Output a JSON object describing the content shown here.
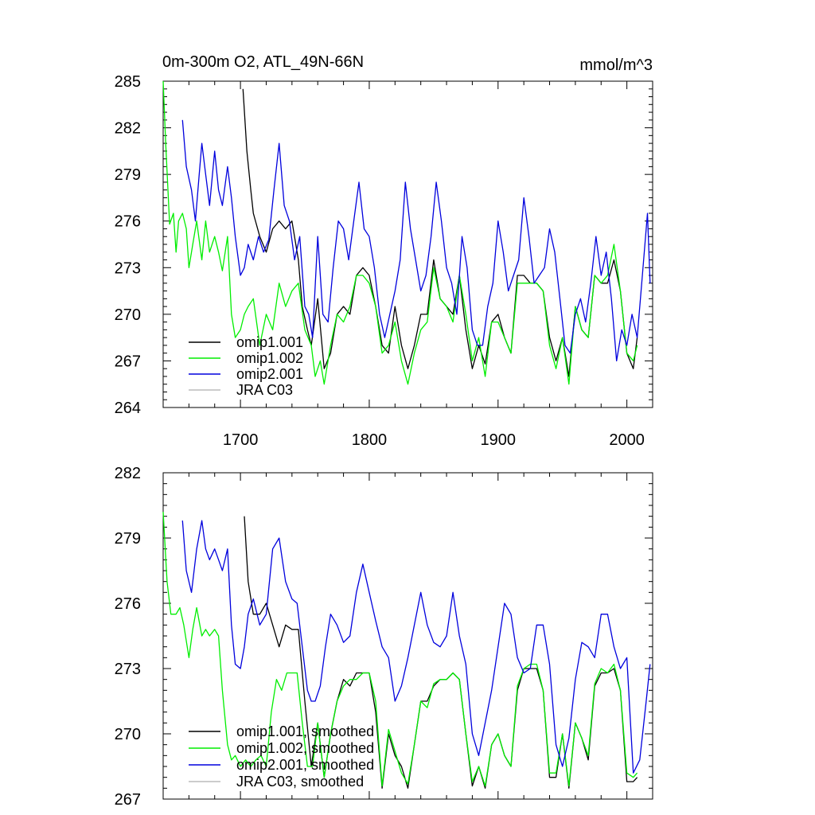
{
  "chart_data": [
    {
      "type": "line",
      "title": "0m-300m O2, ATL_49N-66N",
      "units": "mmol/m^3",
      "xlim": [
        1640,
        2020
      ],
      "xticks": [
        1700,
        1800,
        1900,
        2000
      ],
      "ylim": [
        264,
        285
      ],
      "yticks": [
        264,
        267,
        270,
        273,
        276,
        279,
        282,
        285
      ],
      "legend": [
        {
          "label": "omip1.001",
          "color": "#000000"
        },
        {
          "label": "omip1.002",
          "color": "#00ee00"
        },
        {
          "label": "omip2.001",
          "color": "#0000dd"
        },
        {
          "label": "JRA C03",
          "color": "#bbbbbb"
        }
      ],
      "series": [
        {
          "name": "omip1.001",
          "color": "#000000",
          "x": [
            1702,
            1705,
            1708,
            1710,
            1715,
            1720,
            1725,
            1730,
            1735,
            1740,
            1745,
            1748,
            1752,
            1755,
            1760,
            1765,
            1770,
            1775,
            1780,
            1785,
            1790,
            1795,
            1800,
            1805,
            1810,
            1815,
            1820,
            1825,
            1830,
            1835,
            1840,
            1845,
            1850,
            1855,
            1860,
            1865,
            1870,
            1875,
            1880,
            1885,
            1890,
            1895,
            1900,
            1905,
            1910,
            1915,
            1920,
            1925,
            1930,
            1935,
            1940,
            1945,
            1950,
            1955,
            1960,
            1965,
            1970,
            1975,
            1980,
            1985,
            1990,
            1995,
            2000,
            2005,
            2008
          ],
          "y": [
            284.5,
            280.5,
            278,
            276.5,
            275,
            274,
            275.5,
            276,
            275.5,
            276,
            273.5,
            270.5,
            269,
            268,
            271,
            266.5,
            267.5,
            270,
            270.5,
            270,
            272.5,
            273,
            272.5,
            270.5,
            268,
            267.5,
            270.5,
            268,
            266.5,
            268,
            270,
            270,
            273.5,
            271,
            270.5,
            270,
            272.5,
            269,
            266.5,
            268,
            266.8,
            269.5,
            270,
            268.5,
            267.5,
            272.5,
            272.5,
            272,
            272,
            271.5,
            268.5,
            267,
            268.5,
            266,
            270.5,
            269,
            268.5,
            272.5,
            272,
            272,
            273.5,
            271.5,
            267.5,
            266.5,
            268.5
          ]
        },
        {
          "name": "omip1.002",
          "color": "#00ee00",
          "x": [
            1640,
            1642,
            1645,
            1648,
            1650,
            1652,
            1655,
            1658,
            1660,
            1663,
            1666,
            1670,
            1673,
            1676,
            1680,
            1683,
            1686,
            1690,
            1693,
            1696,
            1700,
            1703,
            1706,
            1710,
            1715,
            1720,
            1725,
            1730,
            1735,
            1740,
            1745,
            1750,
            1755,
            1758,
            1762,
            1765,
            1770,
            1775,
            1780,
            1785,
            1790,
            1795,
            1800,
            1805,
            1810,
            1815,
            1820,
            1825,
            1830,
            1835,
            1840,
            1845,
            1850,
            1855,
            1860,
            1865,
            1870,
            1875,
            1880,
            1885,
            1890,
            1895,
            1900,
            1905,
            1910,
            1915,
            1920,
            1925,
            1930,
            1935,
            1940,
            1945,
            1950,
            1955,
            1960,
            1965,
            1970,
            1975,
            1980,
            1985,
            1990,
            1995,
            2000,
            2005,
            2008
          ],
          "y": [
            285,
            281,
            275.8,
            276.5,
            274,
            276,
            276.5,
            275.5,
            273,
            274.5,
            276,
            273.5,
            276,
            274,
            275,
            274,
            272.8,
            275,
            270,
            268.5,
            269,
            270,
            270.5,
            271,
            268,
            270,
            269,
            272,
            270.5,
            271.5,
            272,
            269,
            268,
            266,
            267,
            265.5,
            268,
            270,
            269.5,
            270.5,
            272.5,
            272.5,
            272,
            270.5,
            267.5,
            268,
            269.5,
            267,
            265.5,
            267.5,
            269,
            269.5,
            273,
            271,
            270.5,
            269.5,
            272.5,
            270,
            267,
            268.5,
            266,
            269.5,
            269.5,
            268.5,
            267.5,
            272,
            272,
            272,
            272,
            271.5,
            268,
            266.5,
            268.5,
            265.5,
            270.5,
            269,
            268.5,
            272.5,
            272,
            272.5,
            274.5,
            271.5,
            267.5,
            267,
            268
          ]
        },
        {
          "name": "omip2.001",
          "color": "#0000dd",
          "x": [
            1655,
            1658,
            1662,
            1665,
            1668,
            1670,
            1673,
            1676,
            1680,
            1683,
            1686,
            1690,
            1693,
            1696,
            1700,
            1703,
            1706,
            1710,
            1714,
            1718,
            1722,
            1726,
            1730,
            1734,
            1738,
            1742,
            1746,
            1750,
            1753,
            1756,
            1760,
            1764,
            1768,
            1772,
            1776,
            1780,
            1784,
            1788,
            1792,
            1796,
            1800,
            1804,
            1808,
            1812,
            1816,
            1820,
            1824,
            1828,
            1832,
            1836,
            1840,
            1844,
            1848,
            1852,
            1856,
            1860,
            1864,
            1868,
            1872,
            1876,
            1880,
            1884,
            1888,
            1892,
            1896,
            1900,
            1904,
            1908,
            1912,
            1916,
            1920,
            1924,
            1928,
            1932,
            1936,
            1940,
            1944,
            1948,
            1952,
            1956,
            1960,
            1964,
            1968,
            1972,
            1976,
            1980,
            1984,
            1988,
            1992,
            1996,
            2000,
            2004,
            2008,
            2012,
            2016,
            2018
          ],
          "y": [
            282.5,
            279.5,
            278,
            276,
            279,
            281,
            279,
            277,
            280.5,
            278,
            277,
            279.5,
            277.5,
            275,
            272.5,
            273,
            274.5,
            273.5,
            275,
            274,
            274.8,
            278,
            281,
            277,
            276,
            273.5,
            275,
            270.5,
            270,
            268.5,
            275,
            270,
            269.5,
            273,
            276,
            275.5,
            273.5,
            276,
            278.5,
            275.5,
            275,
            273,
            270,
            268.5,
            270,
            271.5,
            273.5,
            278.5,
            275.5,
            273.5,
            271.5,
            272.5,
            275,
            278.5,
            276,
            273,
            272,
            270,
            275,
            273,
            269,
            268,
            268,
            270.5,
            272,
            276,
            274,
            271.5,
            272.5,
            273.5,
            277.5,
            275,
            272,
            272.5,
            273,
            275.5,
            274,
            271,
            268,
            267.5,
            270,
            271,
            269.5,
            272,
            275,
            272.5,
            274,
            271,
            267,
            269,
            268,
            270,
            268.5,
            272.5,
            276.5,
            272
          ]
        },
        {
          "name": "JRA C03",
          "color": "#bbbbbb",
          "x": [],
          "y": []
        }
      ]
    },
    {
      "type": "line",
      "title": "",
      "units": "",
      "xlim": [
        1640,
        2020
      ],
      "xticks": [
        1700,
        1800,
        1900,
        2000
      ],
      "ylim": [
        267,
        282
      ],
      "yticks": [
        267,
        270,
        273,
        276,
        279,
        282
      ],
      "legend": [
        {
          "label": "omip1.001, smoothed",
          "color": "#000000"
        },
        {
          "label": "omip1.002, smoothed",
          "color": "#00ee00"
        },
        {
          "label": "omip2.001, smoothed",
          "color": "#0000dd"
        },
        {
          "label": "JRA C03, smoothed",
          "color": "#bbbbbb"
        }
      ],
      "series": [
        {
          "name": "omip1.001, smoothed",
          "color": "#000000",
          "x": [
            1703,
            1706,
            1710,
            1715,
            1720,
            1725,
            1730,
            1735,
            1740,
            1745,
            1750,
            1755,
            1760,
            1765,
            1770,
            1775,
            1780,
            1785,
            1790,
            1795,
            1800,
            1805,
            1810,
            1815,
            1820,
            1825,
            1830,
            1835,
            1840,
            1845,
            1850,
            1855,
            1860,
            1865,
            1870,
            1875,
            1880,
            1885,
            1890,
            1895,
            1900,
            1905,
            1910,
            1915,
            1920,
            1925,
            1930,
            1935,
            1940,
            1945,
            1950,
            1955,
            1960,
            1965,
            1970,
            1975,
            1980,
            1985,
            1990,
            1995,
            2000,
            2005,
            2008
          ],
          "y": [
            280,
            277,
            275.5,
            275.5,
            276,
            275,
            274,
            275,
            274.8,
            274.8,
            271.5,
            268.5,
            270.5,
            268,
            270,
            271.5,
            272.5,
            272.2,
            272.8,
            272.8,
            272.8,
            271,
            267.5,
            270,
            269,
            268.5,
            267.5,
            269.5,
            271.5,
            271.5,
            272.2,
            272.5,
            272.5,
            272.8,
            272.5,
            270,
            267.6,
            268.5,
            267.5,
            269.5,
            270,
            269,
            268.5,
            272,
            273,
            273,
            273,
            272,
            268,
            268,
            270,
            267.5,
            270.5,
            269.8,
            268.8,
            272.2,
            272.8,
            272.8,
            273,
            272,
            267.8,
            267.8,
            268
          ]
        },
        {
          "name": "omip1.002, smoothed",
          "color": "#00ee00",
          "x": [
            1640,
            1643,
            1646,
            1650,
            1653,
            1656,
            1660,
            1663,
            1666,
            1670,
            1673,
            1676,
            1680,
            1683,
            1686,
            1690,
            1693,
            1696,
            1700,
            1704,
            1708,
            1712,
            1716,
            1720,
            1724,
            1728,
            1732,
            1736,
            1740,
            1744,
            1748,
            1752,
            1756,
            1760,
            1765,
            1770,
            1775,
            1780,
            1785,
            1790,
            1795,
            1800,
            1805,
            1810,
            1815,
            1820,
            1825,
            1830,
            1835,
            1840,
            1845,
            1850,
            1855,
            1860,
            1865,
            1870,
            1875,
            1880,
            1885,
            1890,
            1895,
            1900,
            1905,
            1910,
            1915,
            1920,
            1925,
            1930,
            1935,
            1940,
            1945,
            1950,
            1955,
            1960,
            1965,
            1970,
            1975,
            1980,
            1985,
            1990,
            1995,
            2000,
            2005,
            2008
          ],
          "y": [
            280.2,
            277,
            275.5,
            275.5,
            275.8,
            275,
            273.5,
            274.8,
            275.8,
            274.5,
            274.8,
            274.5,
            274.8,
            274.5,
            272,
            269.5,
            268.8,
            269,
            268.5,
            268.8,
            268.5,
            268.8,
            269,
            268.5,
            271,
            272.5,
            272,
            272.8,
            272.8,
            272.8,
            270.5,
            268.5,
            268.5,
            270.5,
            268,
            270,
            271.5,
            272.2,
            272.5,
            272.5,
            272.8,
            272.8,
            271.5,
            267.6,
            270.2,
            269.2,
            268.2,
            267.7,
            269.5,
            271.5,
            271.2,
            272.3,
            272.5,
            272.5,
            272.8,
            272.5,
            270,
            267.8,
            268.5,
            267.6,
            269.5,
            270,
            269,
            268.5,
            272.2,
            273,
            273.2,
            273.2,
            272,
            268.2,
            268.2,
            270,
            267.6,
            270.5,
            269.8,
            269,
            272.3,
            273,
            272.8,
            273.2,
            272,
            268.2,
            268,
            268.2
          ]
        },
        {
          "name": "omip2.001, smoothed",
          "color": "#0000dd",
          "x": [
            1655,
            1658,
            1662,
            1666,
            1670,
            1673,
            1676,
            1680,
            1683,
            1686,
            1690,
            1693,
            1696,
            1700,
            1703,
            1706,
            1710,
            1715,
            1720,
            1725,
            1730,
            1735,
            1740,
            1744,
            1748,
            1752,
            1755,
            1758,
            1762,
            1766,
            1770,
            1775,
            1780,
            1785,
            1790,
            1795,
            1800,
            1805,
            1810,
            1815,
            1820,
            1825,
            1830,
            1835,
            1840,
            1845,
            1850,
            1855,
            1860,
            1865,
            1870,
            1875,
            1880,
            1885,
            1890,
            1895,
            1900,
            1905,
            1910,
            1915,
            1920,
            1925,
            1930,
            1935,
            1940,
            1945,
            1950,
            1955,
            1960,
            1965,
            1970,
            1975,
            1980,
            1985,
            1990,
            1995,
            2000,
            2005,
            2010,
            2015,
            2018
          ],
          "y": [
            279.8,
            277.5,
            276.5,
            278.5,
            279.8,
            278.5,
            278,
            278.5,
            278,
            277.5,
            278.5,
            275,
            273.2,
            273,
            274,
            275.5,
            276.2,
            275,
            275.5,
            278.5,
            279,
            277,
            276.2,
            276,
            274,
            272,
            271.5,
            271.5,
            272.2,
            274,
            275.5,
            275,
            274.2,
            274.5,
            276.5,
            277.8,
            276.5,
            275.2,
            274,
            273.5,
            271.5,
            272.2,
            273.5,
            275,
            276.5,
            275,
            274.2,
            274,
            274.5,
            276.5,
            274.5,
            273.2,
            270,
            269,
            270.5,
            272,
            274,
            276,
            275.5,
            273.5,
            272.8,
            273,
            275,
            275,
            273.2,
            269.5,
            268.5,
            269.8,
            272.5,
            274.2,
            274,
            273.5,
            275.5,
            275.5,
            274,
            273,
            273.5,
            268.2,
            268.8,
            271.5,
            273.2
          ]
        },
        {
          "name": "JRA C03, smoothed",
          "color": "#bbbbbb",
          "x": [],
          "y": []
        }
      ]
    }
  ]
}
